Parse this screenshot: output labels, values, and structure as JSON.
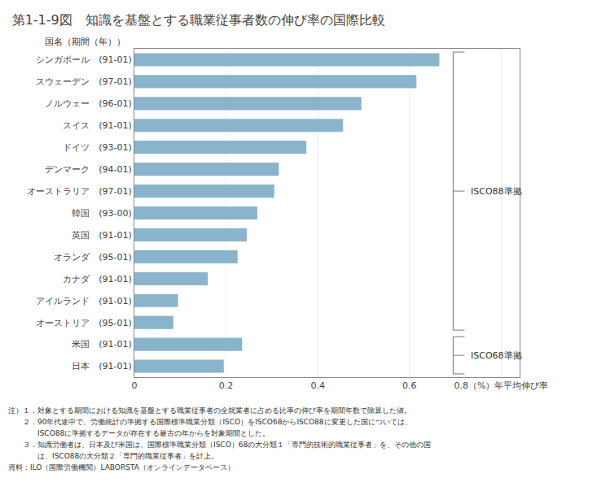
{
  "chart_data": {
    "type": "bar",
    "orientation": "horizontal",
    "title": "第1-1-9図　知識を基盤とする職業従事者数の伸び率の国際比較",
    "categories": [
      "シンガポール　(91-01)",
      "スウェーデン　(97-01)",
      "ノルウェー　(96-01)",
      "スイス　(91-01)",
      "ドイツ　(93-01)",
      "デンマーク　(94-01)",
      "オーストラリア　(97-01)",
      "韓国　(93-00)",
      "英国　(91-01)",
      "オランダ　(95-01)",
      "カナダ　(91-01)",
      "アイルランド　(91-01)",
      "オーストリア　(95-01)",
      "米国　(91-01)",
      "日本　(91-01)"
    ],
    "values": [
      0.665,
      0.615,
      0.495,
      0.455,
      0.375,
      0.315,
      0.305,
      0.268,
      0.245,
      0.225,
      0.16,
      0.095,
      0.085,
      0.235,
      0.195
    ],
    "color": "#8ab4cc",
    "xlim": [
      0,
      0.84
    ],
    "xticks": [
      0,
      0.2,
      0.4,
      0.6,
      {
        "value": 0.8,
        "label": "0.8（%）年平均伸び率"
      }
    ],
    "grid": true,
    "annotations": [
      "国名（期間（年））"
    ],
    "brackets": [
      {
        "text": "ISCO88準拠",
        "first": "シンガポール　(91-01)",
        "last": "オーストリア　(95-01)"
      },
      {
        "text": "ISCO68準拠",
        "first": "米国　(91-01)",
        "last": "日本　(91-01)"
      }
    ],
    "notes": [
      "注）１．対象とする期間における知識を基盤とする職業従事者の全就業者に占める比率の伸び率を期間年数で除算した値。",
      "　　２．90年代途中で、労働統計の準拠する国際標準職業分類（ISCO）をISCO68からISCO88に変更した国については、",
      "　　　　ISCO88に準拠するデータが存在する最古の年からを対象期間とした。",
      "　　３．知識労働者は、日本及び米国は、国際標準職業分類（ISCO）68の大分類１「専門的技術的職業従事者」を、その他の国",
      "　　　　は、ISCO88の大分類２「専門的職業従事者」を計上。",
      "資料：ILO（国際労働機関）LABORSTA（オンラインデータベース）"
    ]
  }
}
